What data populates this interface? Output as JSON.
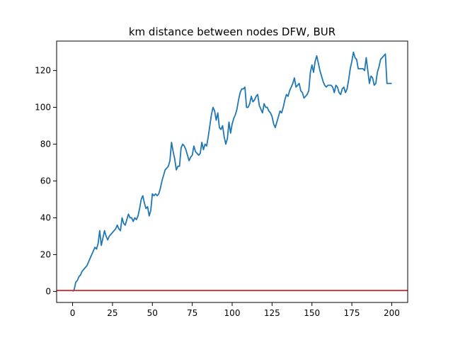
{
  "chart_data": {
    "type": "line",
    "title": "km distance between nodes DFW, BUR",
    "xlabel": "",
    "ylabel": "",
    "xlim": [
      -10,
      210
    ],
    "ylim": [
      -6,
      136
    ],
    "xticks": [
      0,
      25,
      50,
      75,
      100,
      125,
      150,
      175,
      200
    ],
    "yticks": [
      0,
      20,
      40,
      60,
      80,
      100,
      120
    ],
    "grid": false,
    "legend": "none",
    "colors": {
      "series": "#1f77b4",
      "reference": "#d62728"
    },
    "reference_line": {
      "y": 0.5
    },
    "series": [
      {
        "x": [
          0,
          1,
          2,
          3,
          4,
          5,
          6,
          7,
          8,
          9,
          10,
          11,
          12,
          13,
          14,
          15,
          16,
          17,
          18,
          19,
          20,
          21,
          22,
          23,
          24,
          25,
          26,
          27,
          28,
          29,
          30,
          31,
          32,
          33,
          34,
          35,
          36,
          37,
          38,
          39,
          40,
          41,
          42,
          43,
          44,
          45,
          46,
          47,
          48,
          49,
          50,
          51,
          52,
          53,
          54,
          55,
          56,
          57,
          58,
          59,
          60,
          61,
          62,
          63,
          64,
          65,
          66,
          67,
          68,
          69,
          70,
          71,
          72,
          73,
          74,
          75,
          76,
          77,
          78,
          79,
          80,
          81,
          82,
          83,
          84,
          85,
          86,
          87,
          88,
          89,
          90,
          91,
          92,
          93,
          94,
          95,
          96,
          97,
          98,
          99,
          100,
          101,
          102,
          103,
          104,
          105,
          106,
          107,
          108,
          109,
          110,
          111,
          112,
          113,
          114,
          115,
          116,
          117,
          118,
          119,
          120,
          121,
          122,
          123,
          124,
          125,
          126,
          127,
          128,
          129,
          130,
          131,
          132,
          133,
          134,
          135,
          136,
          137,
          138,
          139,
          140,
          141,
          142,
          143,
          144,
          145,
          146,
          147,
          148,
          149,
          150,
          151,
          152,
          153,
          154,
          155,
          156,
          157,
          158,
          159,
          160,
          161,
          162,
          163,
          164,
          165,
          166,
          167,
          168,
          169,
          170,
          171,
          172,
          173,
          174,
          175,
          176,
          177,
          178,
          179,
          180,
          181,
          182,
          183,
          184,
          185,
          186,
          187,
          188,
          189,
          190,
          191,
          192,
          193,
          194,
          195,
          196,
          197,
          198,
          199,
          200
        ],
        "values": [
          0,
          1,
          5,
          6,
          8,
          9,
          11,
          12,
          13,
          14,
          16,
          18,
          20,
          22,
          24,
          23,
          26,
          33,
          25,
          29,
          33,
          30,
          28,
          30,
          31,
          32,
          33,
          34,
          36,
          34,
          33,
          40,
          37,
          36,
          39,
          42,
          40,
          40,
          38,
          40,
          39,
          41,
          45,
          50,
          52,
          48,
          45,
          46,
          41,
          44,
          53,
          52,
          53,
          52,
          53,
          56,
          60,
          63,
          66,
          67,
          68,
          71,
          81,
          76,
          72,
          66,
          68,
          68,
          78,
          80,
          79,
          77,
          74,
          71,
          73,
          74,
          79,
          76,
          75,
          74,
          75,
          81,
          77,
          80,
          79,
          84,
          90,
          96,
          100,
          98,
          93,
          97,
          89,
          88,
          90,
          84,
          80,
          83,
          92,
          86,
          91,
          94,
          96,
          99,
          104,
          108,
          110,
          110,
          111,
          100,
          100,
          102,
          106,
          103,
          104,
          106,
          107,
          101,
          99,
          97,
          102,
          100,
          100,
          98,
          97,
          95,
          91,
          89,
          92,
          95,
          98,
          97,
          100,
          104,
          107,
          106,
          109,
          111,
          113,
          116,
          111,
          112,
          113,
          109,
          108,
          105,
          106,
          107,
          109,
          119,
          123,
          119,
          125,
          128,
          124,
          120,
          117,
          114,
          112,
          111,
          112,
          112,
          112,
          111,
          108,
          112,
          111,
          108,
          107,
          110,
          111,
          108,
          110,
          115,
          121,
          125,
          130,
          127,
          126,
          121,
          121,
          121,
          121,
          120,
          127,
          120,
          113,
          117,
          116,
          112,
          113,
          119,
          122,
          126,
          127,
          128,
          129,
          113,
          113,
          113,
          113
        ]
      }
    ]
  }
}
